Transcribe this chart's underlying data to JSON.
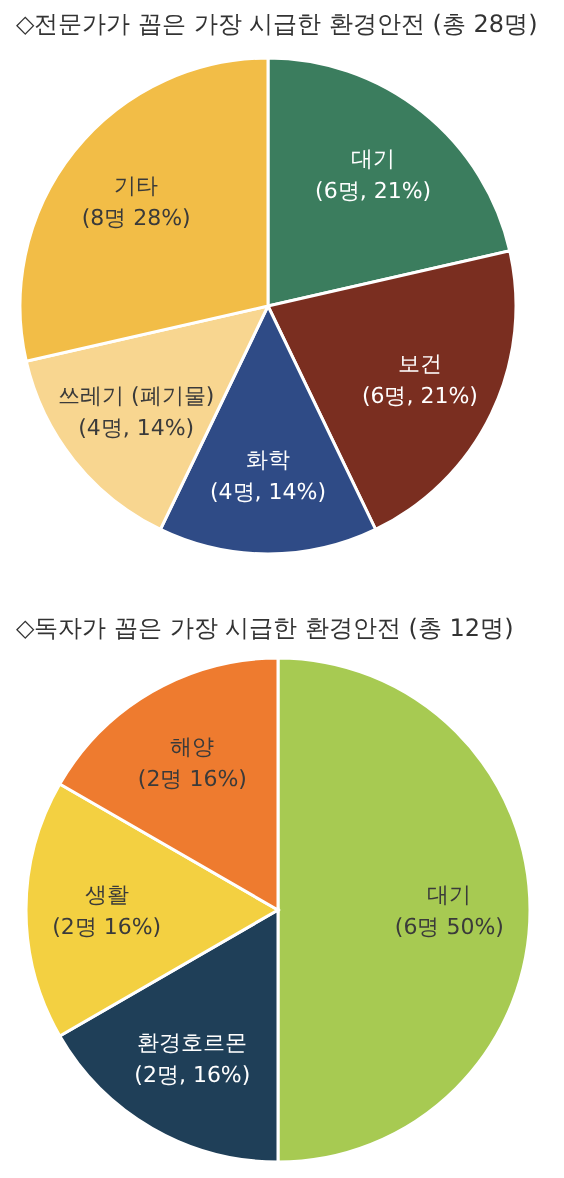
{
  "chart_data": [
    {
      "type": "pie",
      "title": "◇전문가가 꼽은 가장 시급한 환경안전 (총 28명)",
      "categories": [
        "대기",
        "보건",
        "화학",
        "쓰레기 (폐기물)",
        "기타"
      ],
      "values": [
        6,
        6,
        4,
        4,
        8
      ],
      "value_labels": [
        "(6명, 21%)",
        "(6명, 21%)",
        "(4명, 14%)",
        "(4명, 14%)",
        "(8명 28%)"
      ],
      "colors": [
        "#3b7d5e",
        "#7a2e20",
        "#2f4b86",
        "#f8d690",
        "#f2bd47"
      ]
    },
    {
      "type": "pie",
      "title": "◇독자가 꼽은 가장 시급한 환경안전 (총 12명)",
      "categories": [
        "대기",
        "환경호르몬",
        "생활",
        "해양"
      ],
      "values": [
        6,
        2,
        2,
        2
      ],
      "value_labels": [
        "(6명 50%)",
        "(2명, 16%)",
        "(2명 16%)",
        "(2명 16%)"
      ],
      "colors": [
        "#a7ca52",
        "#1f3f58",
        "#f3d041",
        "#ee7b2f"
      ]
    }
  ]
}
